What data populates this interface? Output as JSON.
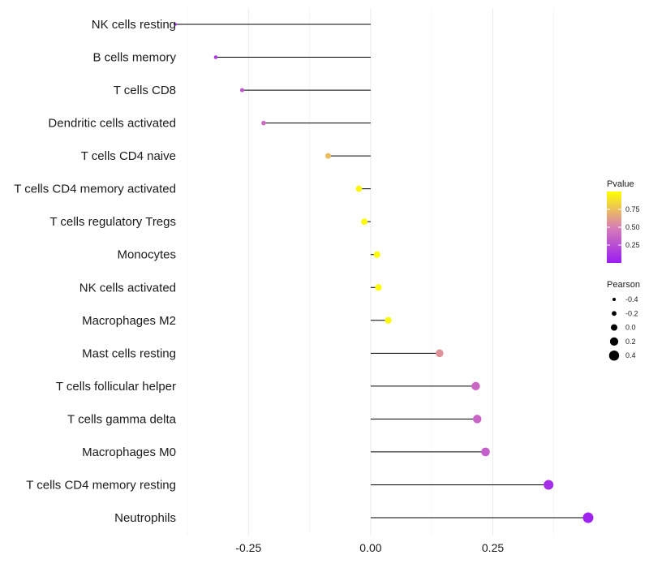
{
  "chart_data": {
    "type": "lollipop",
    "title": "",
    "xlabel": "",
    "ylabel": "",
    "xlim": [
      -0.38,
      0.45
    ],
    "x_ticks": [
      -0.25,
      0.0,
      0.25
    ],
    "x_tick_labels": [
      "-0.25",
      "0.00",
      "0.25"
    ],
    "grid": true,
    "categories": [
      "NK cells resting",
      "B cells memory",
      "T cells CD8",
      "Dendritic cells activated",
      "T cells CD4 naive",
      "T cells CD4 memory activated",
      "T cells regulatory  Tregs ",
      "Monocytes",
      "NK cells activated",
      "Macrophages M2",
      "Mast cells resting",
      "T cells follicular helper",
      "T cells gamma delta",
      "Macrophages M0",
      "T cells CD4 memory resting",
      "Neutrophils"
    ],
    "pearson": [
      -0.4,
      -0.317,
      -0.263,
      -0.219,
      -0.087,
      -0.024,
      -0.013,
      0.013,
      0.016,
      0.036,
      0.141,
      0.215,
      0.218,
      0.235,
      0.364,
      0.445
    ],
    "pvalue": [
      0.04,
      0.15,
      0.3,
      0.4,
      0.74,
      0.96,
      0.98,
      0.99,
      0.99,
      0.96,
      0.58,
      0.38,
      0.37,
      0.33,
      0.08,
      0.03
    ],
    "legend_color": {
      "title": "Pvalue",
      "ticks": [
        0.25,
        0.5,
        0.75
      ],
      "tick_labels": [
        "0.25",
        "0.50",
        "0.75"
      ],
      "colors": [
        "#9b1df2",
        "#d77fb5",
        "#ffff00"
      ],
      "placement": "right"
    },
    "legend_size": {
      "title": "Pearson",
      "values": [
        -0.4,
        -0.2,
        0.0,
        0.2,
        0.4
      ],
      "labels": [
        "-0.4",
        "-0.2",
        "0.0",
        "0.2",
        "0.4"
      ],
      "placement": "right"
    }
  }
}
